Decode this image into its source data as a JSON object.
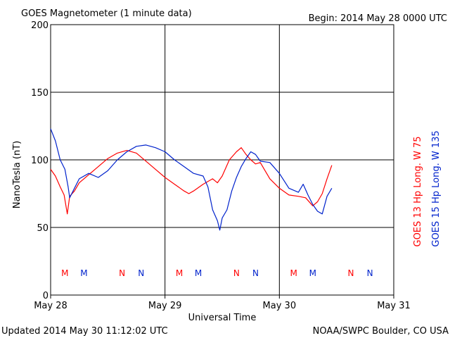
{
  "title": "GOES Magnetometer (1 minute data)",
  "begin_label": "Begin:  2014 May 28 0000 UTC",
  "updated_label": "Updated 2014 May 30 11:12:02 UTC",
  "credit_label": "NOAA/SWPC Boulder, CO USA",
  "colors": {
    "goes13": "#ff0000",
    "goes15": "#0022cc",
    "grid": "#000000"
  },
  "chart_data": {
    "type": "line",
    "title": "GOES Magnetometer (1 minute data)",
    "xlabel": "Universal Time",
    "ylabel": "NanoTesla (nT)",
    "xlim": [
      "2014-05-28 00:00",
      "2014-05-31 00:00"
    ],
    "ylim": [
      0,
      200
    ],
    "y_ticks": [
      0,
      50,
      100,
      150,
      200
    ],
    "x_ticks": [
      "May 28",
      "May 29",
      "May 30",
      "May 31"
    ],
    "grid": true,
    "series": [
      {
        "name": "GOES 13 Hp  Long. W 75",
        "color": "#ff0000",
        "points": [
          [
            "2014-05-28 00:00",
            93
          ],
          [
            "2014-05-28 01:00",
            88
          ],
          [
            "2014-05-28 02:00",
            80
          ],
          [
            "2014-05-28 02:50",
            74
          ],
          [
            "2014-05-28 03:30",
            60
          ],
          [
            "2014-05-28 04:00",
            73
          ],
          [
            "2014-05-28 05:00",
            77
          ],
          [
            "2014-05-28 06:00",
            83
          ],
          [
            "2014-05-28 08:00",
            89
          ],
          [
            "2014-05-28 10:00",
            95
          ],
          [
            "2014-05-28 12:00",
            101
          ],
          [
            "2014-05-28 14:00",
            105
          ],
          [
            "2014-05-28 16:00",
            107
          ],
          [
            "2014-05-28 18:00",
            105
          ],
          [
            "2014-05-28 20:00",
            99
          ],
          [
            "2014-05-28 22:00",
            93
          ],
          [
            "2014-05-29 00:00",
            87
          ],
          [
            "2014-05-29 02:00",
            82
          ],
          [
            "2014-05-29 04:00",
            77
          ],
          [
            "2014-05-29 05:00",
            75
          ],
          [
            "2014-05-29 06:00",
            77
          ],
          [
            "2014-05-29 08:00",
            82
          ],
          [
            "2014-05-29 10:00",
            86
          ],
          [
            "2014-05-29 11:00",
            83
          ],
          [
            "2014-05-29 12:00",
            88
          ],
          [
            "2014-05-29 13:30",
            100
          ],
          [
            "2014-05-29 15:00",
            106
          ],
          [
            "2014-05-29 16:00",
            109
          ],
          [
            "2014-05-29 17:00",
            104
          ],
          [
            "2014-05-29 18:00",
            100
          ],
          [
            "2014-05-29 19:00",
            97
          ],
          [
            "2014-05-29 20:00",
            98
          ],
          [
            "2014-05-29 21:00",
            92
          ],
          [
            "2014-05-29 22:00",
            86
          ],
          [
            "2014-05-30 00:00",
            79
          ],
          [
            "2014-05-30 02:00",
            74
          ],
          [
            "2014-05-30 04:00",
            73
          ],
          [
            "2014-05-30 05:30",
            72
          ],
          [
            "2014-05-30 07:00",
            66
          ],
          [
            "2014-05-30 08:00",
            69
          ],
          [
            "2014-05-30 09:00",
            75
          ],
          [
            "2014-05-30 10:00",
            86
          ],
          [
            "2014-05-30 11:00",
            96
          ]
        ]
      },
      {
        "name": "GOES 15 Hp  Long. W 135",
        "color": "#0022cc",
        "points": [
          [
            "2014-05-28 00:00",
            123
          ],
          [
            "2014-05-28 01:00",
            114
          ],
          [
            "2014-05-28 02:00",
            100
          ],
          [
            "2014-05-28 03:00",
            93
          ],
          [
            "2014-05-28 03:40",
            80
          ],
          [
            "2014-05-28 04:00",
            72
          ],
          [
            "2014-05-28 05:00",
            79
          ],
          [
            "2014-05-28 06:00",
            86
          ],
          [
            "2014-05-28 08:00",
            90
          ],
          [
            "2014-05-28 10:00",
            87
          ],
          [
            "2014-05-28 12:00",
            92
          ],
          [
            "2014-05-28 14:00",
            100
          ],
          [
            "2014-05-28 16:00",
            106
          ],
          [
            "2014-05-28 18:00",
            110
          ],
          [
            "2014-05-28 20:00",
            111
          ],
          [
            "2014-05-28 22:00",
            109
          ],
          [
            "2014-05-29 00:00",
            106
          ],
          [
            "2014-05-29 02:00",
            100
          ],
          [
            "2014-05-29 04:00",
            95
          ],
          [
            "2014-05-29 06:00",
            90
          ],
          [
            "2014-05-29 08:00",
            88
          ],
          [
            "2014-05-29 09:00",
            80
          ],
          [
            "2014-05-29 10:00",
            63
          ],
          [
            "2014-05-29 11:00",
            55
          ],
          [
            "2014-05-29 11:30",
            48
          ],
          [
            "2014-05-29 12:00",
            57
          ],
          [
            "2014-05-29 13:00",
            63
          ],
          [
            "2014-05-29 14:00",
            77
          ],
          [
            "2014-05-29 15:00",
            87
          ],
          [
            "2014-05-29 16:00",
            95
          ],
          [
            "2014-05-29 17:00",
            101
          ],
          [
            "2014-05-29 18:00",
            106
          ],
          [
            "2014-05-29 19:00",
            104
          ],
          [
            "2014-05-29 20:00",
            99
          ],
          [
            "2014-05-29 22:00",
            98
          ],
          [
            "2014-05-30 00:00",
            90
          ],
          [
            "2014-05-30 02:00",
            79
          ],
          [
            "2014-05-30 04:00",
            76
          ],
          [
            "2014-05-30 05:00",
            82
          ],
          [
            "2014-05-30 06:00",
            74
          ],
          [
            "2014-05-30 07:00",
            67
          ],
          [
            "2014-05-30 08:00",
            62
          ],
          [
            "2014-05-30 09:00",
            60
          ],
          [
            "2014-05-30 10:00",
            73
          ],
          [
            "2014-05-30 11:00",
            79
          ]
        ]
      }
    ],
    "markers": [
      {
        "label": "M",
        "time": "2014-05-28 03:00",
        "color": "#ff0000"
      },
      {
        "label": "M",
        "time": "2014-05-28 07:00",
        "color": "#0022cc"
      },
      {
        "label": "N",
        "time": "2014-05-28 15:00",
        "color": "#ff0000"
      },
      {
        "label": "N",
        "time": "2014-05-28 19:00",
        "color": "#0022cc"
      },
      {
        "label": "M",
        "time": "2014-05-29 03:00",
        "color": "#ff0000"
      },
      {
        "label": "M",
        "time": "2014-05-29 07:00",
        "color": "#0022cc"
      },
      {
        "label": "N",
        "time": "2014-05-29 15:00",
        "color": "#ff0000"
      },
      {
        "label": "N",
        "time": "2014-05-29 19:00",
        "color": "#0022cc"
      },
      {
        "label": "M",
        "time": "2014-05-30 03:00",
        "color": "#ff0000"
      },
      {
        "label": "M",
        "time": "2014-05-30 07:00",
        "color": "#0022cc"
      },
      {
        "label": "N",
        "time": "2014-05-30 15:00",
        "color": "#ff0000"
      },
      {
        "label": "N",
        "time": "2014-05-30 19:00",
        "color": "#0022cc"
      }
    ]
  }
}
